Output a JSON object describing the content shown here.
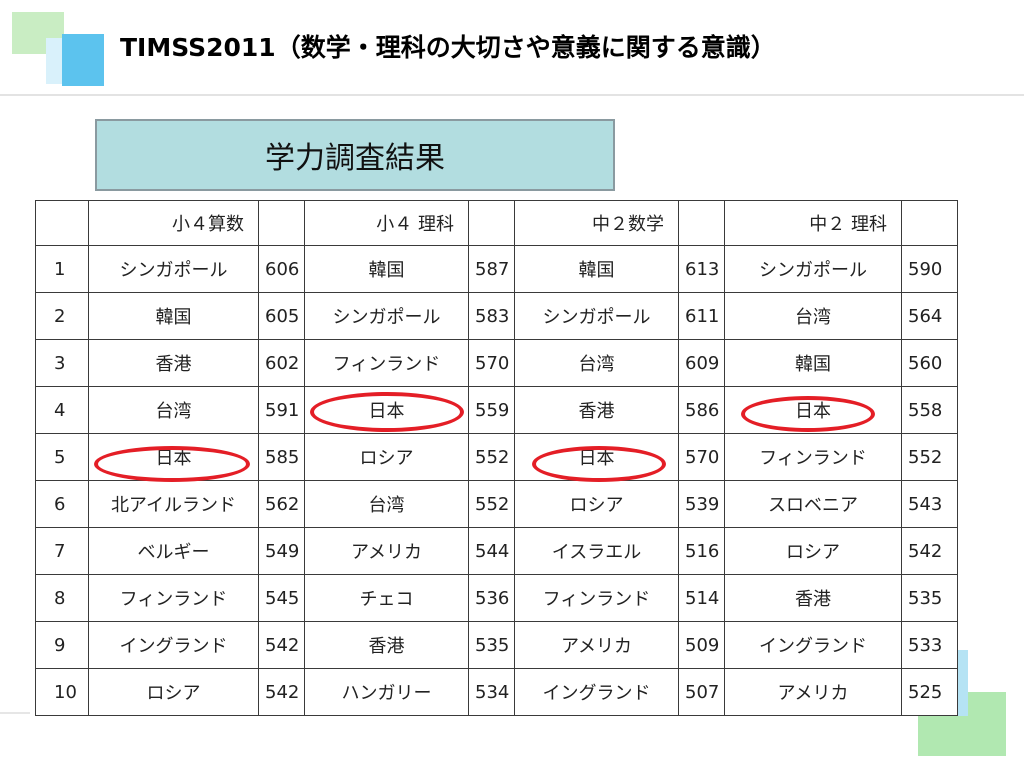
{
  "slide": {
    "title": "TIMSS2011（数学・理科の大切さや意義に関する意識）",
    "banner": "学力調査結果"
  },
  "table": {
    "headers": [
      "",
      "小４算数",
      "",
      "小４ 理科",
      "",
      "中２数学",
      "",
      "中２ 理科",
      ""
    ],
    "rows": [
      [
        "1",
        "シンガポール",
        "606",
        "韓国",
        "587",
        "韓国",
        "613",
        "シンガポール",
        "590"
      ],
      [
        "2",
        "韓国",
        "605",
        "シンガポール",
        "583",
        "シンガポール",
        "611",
        "台湾",
        "564"
      ],
      [
        "3",
        "香港",
        "602",
        "フィンランド",
        "570",
        "台湾",
        "609",
        "韓国",
        "560"
      ],
      [
        "4",
        "台湾",
        "591",
        "日本",
        "559",
        "香港",
        "586",
        "日本",
        "558"
      ],
      [
        "5",
        "日本",
        "585",
        "ロシア",
        "552",
        "日本",
        "570",
        "フィンランド",
        "552"
      ],
      [
        "6",
        "北アイルランド",
        "562",
        "台湾",
        "552",
        "ロシア",
        "539",
        "スロベニア",
        "543"
      ],
      [
        "7",
        "ベルギー",
        "549",
        "アメリカ",
        "544",
        "イスラエル",
        "516",
        "ロシア",
        "542"
      ],
      [
        "8",
        "フィンランド",
        "545",
        "チェコ",
        "536",
        "フィンランド",
        "514",
        "香港",
        "535"
      ],
      [
        "9",
        "イングランド",
        "542",
        "香港",
        "535",
        "アメリカ",
        "509",
        "イングランド",
        "533"
      ],
      [
        "10",
        "ロシア",
        "542",
        "ハンガリー",
        "534",
        "イングランド",
        "507",
        "アメリカ",
        "525"
      ]
    ]
  },
  "colors": {
    "highlight": "#e41e26",
    "banner_fill": "#b2dde0",
    "deco_green": "#9fe0a0",
    "deco_blue": "#5cc3ee"
  }
}
